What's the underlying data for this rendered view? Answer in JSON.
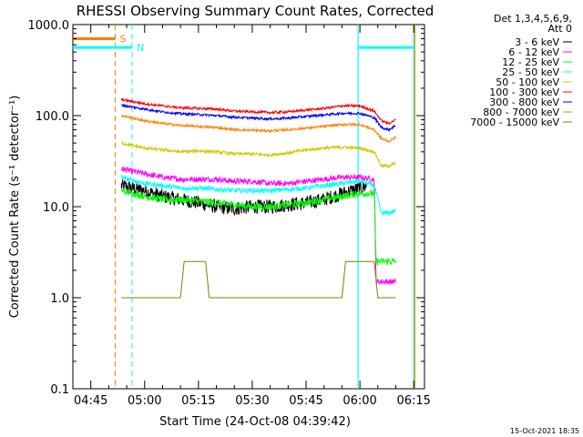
{
  "chart_data": {
    "type": "line",
    "title": "RHESSI Observing Summary Count Rates, Corrected",
    "ylabel": "Corrected Count Rate (s⁻¹ detector⁻¹)",
    "xlabel": "Start Time (24-Oct-08 04:39:42)",
    "footer": "15-Oct-2021 18:35",
    "y_scale": "log",
    "ylim": [
      0.1,
      1000
    ],
    "xlim_minutes_after_0440": [
      0,
      98
    ],
    "yticks": [
      "0.1",
      "1.0",
      "10.0",
      "100.0",
      "1000.0"
    ],
    "xticks": [
      {
        "label": "04:45",
        "t": 5
      },
      {
        "label": "05:00",
        "t": 20
      },
      {
        "label": "05:15",
        "t": 35
      },
      {
        "label": "05:30",
        "t": 50
      },
      {
        "label": "05:45",
        "t": 65
      },
      {
        "label": "06:00",
        "t": 80
      },
      {
        "label": "06:15",
        "t": 95
      }
    ],
    "legend": {
      "header": [
        "Det 1,3,4,5,6,9,",
        "Att 0"
      ],
      "position": "top-right"
    },
    "series": [
      {
        "name": "3 - 6 keV",
        "color": "#000000",
        "t": [
          13.5,
          20,
          25,
          30,
          35,
          40,
          45,
          50,
          55,
          60,
          65,
          70,
          75,
          80,
          82
        ],
        "values": [
          17,
          15,
          13,
          12,
          11,
          10,
          9.5,
          10,
          10,
          10.5,
          11,
          12,
          14,
          16,
          17
        ]
      },
      {
        "name": "6 - 12 keV",
        "color": "#ff00ff",
        "t": [
          13.5,
          20,
          25,
          30,
          35,
          40,
          45,
          50,
          55,
          60,
          65,
          70,
          75,
          80,
          84,
          84.5,
          88,
          90
        ],
        "values": [
          26,
          23,
          21,
          20,
          20,
          20,
          19,
          19,
          18,
          18,
          19,
          20,
          21,
          21,
          20,
          1.5,
          1.5,
          1.5
        ]
      },
      {
        "name": "12 - 25 keV",
        "color": "#00ff00",
        "t": [
          13.5,
          20,
          25,
          30,
          35,
          40,
          45,
          50,
          55,
          60,
          65,
          70,
          75,
          80,
          84,
          84.5,
          88,
          90
        ],
        "values": [
          15,
          13,
          12,
          12,
          11.5,
          11,
          10.5,
          10,
          10,
          10.5,
          11,
          12,
          13,
          14,
          14,
          2.5,
          2.5,
          2.5
        ]
      },
      {
        "name": "25 - 50 keV",
        "color": "#00ffff",
        "t": [
          13.5,
          20,
          25,
          30,
          35,
          40,
          45,
          50,
          55,
          60,
          65,
          70,
          75,
          80,
          84,
          86,
          88,
          90
        ],
        "values": [
          21,
          18,
          17,
          16,
          16,
          15.5,
          15,
          15,
          15,
          15.5,
          16,
          17,
          18,
          19,
          17,
          8.5,
          8.5,
          9
        ]
      },
      {
        "name": "50 - 100 keV",
        "color": "#cccc00",
        "t": [
          13.5,
          20,
          25,
          30,
          35,
          40,
          45,
          50,
          55,
          60,
          65,
          70,
          75,
          80,
          84,
          86,
          88,
          90
        ],
        "values": [
          50,
          44,
          42,
          40,
          41,
          40,
          38,
          38,
          37,
          39,
          42,
          44,
          45,
          44,
          40,
          28,
          28,
          30
        ]
      },
      {
        "name": "100 - 300 keV",
        "color": "#ff0000",
        "t": [
          13.5,
          20,
          25,
          30,
          35,
          40,
          45,
          50,
          55,
          60,
          65,
          70,
          75,
          80,
          84,
          86,
          88,
          90
        ],
        "values": [
          150,
          135,
          128,
          122,
          120,
          118,
          112,
          110,
          108,
          110,
          115,
          120,
          128,
          128,
          112,
          88,
          82,
          90
        ]
      },
      {
        "name": "300 - 800 keV",
        "color": "#0000ff",
        "t": [
          13.5,
          20,
          25,
          30,
          35,
          40,
          45,
          50,
          55,
          60,
          65,
          70,
          75,
          80,
          84,
          86,
          88,
          90
        ],
        "values": [
          130,
          118,
          110,
          105,
          103,
          100,
          96,
          94,
          92,
          94,
          98,
          102,
          106,
          106,
          95,
          74,
          70,
          78
        ]
      },
      {
        "name": "800 - 7000 keV",
        "color": "#ff8000",
        "t": [
          13.5,
          20,
          25,
          30,
          35,
          40,
          45,
          50,
          55,
          60,
          65,
          70,
          75,
          80,
          84,
          86,
          88,
          90
        ],
        "values": [
          100,
          88,
          82,
          78,
          76,
          74,
          70,
          69,
          68,
          70,
          73,
          76,
          80,
          80,
          70,
          56,
          52,
          58
        ]
      },
      {
        "name": "7000 - 15000 keV",
        "color": "#808000",
        "t": [
          13.5,
          30,
          31,
          37,
          38,
          75,
          76,
          84,
          85,
          90
        ],
        "values": [
          1.0,
          1.0,
          2.5,
          2.5,
          1.0,
          1.0,
          2.5,
          2.5,
          1.0,
          1.0
        ]
      }
    ],
    "markers": [
      {
        "label": "S",
        "t": 11.8,
        "color": "#ff8000",
        "style": "dashed",
        "bar_t": [
          0,
          11.8
        ],
        "bar_value": 700
      },
      {
        "label": "N",
        "t": 16.5,
        "color": "#00ffff",
        "style": "dashed",
        "bar_t": [
          0,
          16.5
        ],
        "bar_value": 560
      }
    ],
    "night_bar": {
      "t": [
        79.5,
        95
      ],
      "value": 560,
      "color": "#00ffff"
    },
    "vertical_lines": [
      {
        "t": 79.5,
        "color": "#00ffff"
      },
      {
        "t": 95,
        "color": "#00ffff"
      },
      {
        "t": 95.3,
        "color": "#ff8000"
      }
    ]
  }
}
